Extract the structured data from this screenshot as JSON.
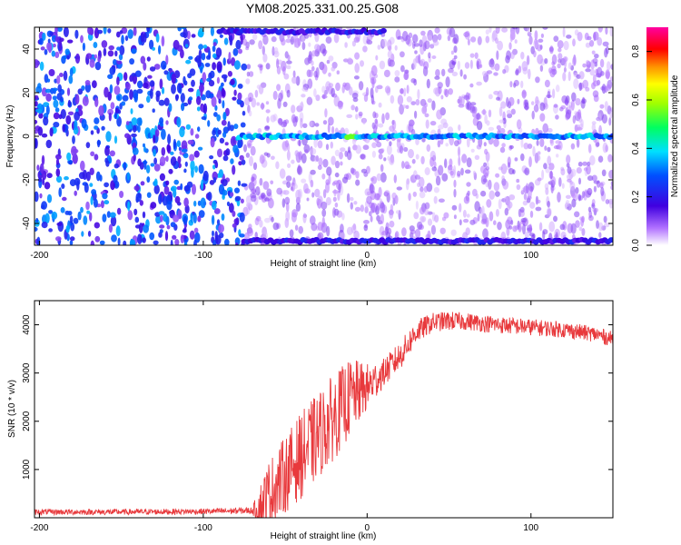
{
  "title": "YM08.2025.331.00.25.G08",
  "chart_data": [
    {
      "type": "heatmap",
      "xlabel": "Height of straight line (km)",
      "ylabel": "Frequency (Hz)",
      "xlim": [
        -203,
        150
      ],
      "ylim": [
        -50,
        50
      ],
      "xticks": [
        -200,
        -100,
        0,
        100
      ],
      "xtick_labels": [
        "-200",
        "-100",
        "0",
        "100"
      ],
      "yticks": [
        -40,
        -20,
        0,
        20,
        40
      ],
      "ytick_labels": [
        "-40",
        "-20",
        "0",
        "20",
        "40"
      ],
      "colorbar": {
        "label": "Normalized spectral amplitude",
        "range": [
          0,
          0.9
        ],
        "ticks": [
          0,
          0.2,
          0.4,
          0.6,
          0.8
        ],
        "tick_labels": [
          "0.0",
          "0.2",
          "0.4",
          "0.6",
          "0.8"
        ],
        "colormap": "rainbow (white-violet-blue-cyan-green-yellow-red-magenta)"
      },
      "noise_region": {
        "x": [
          -203,
          -75
        ],
        "amplitude": 0.3
      },
      "weak_region": {
        "x": [
          -75,
          150
        ],
        "amplitude": 0.1
      },
      "carrier_line": {
        "freq": 0,
        "x_start": -78,
        "x_end": 150,
        "amplitude": 0.35,
        "peak": {
          "x": -10,
          "amplitude": 0.55
        }
      },
      "alias_lines": [
        {
          "freq": 48,
          "x_start": -90,
          "x_end": 10,
          "amplitude": 0.2
        },
        {
          "freq": -48,
          "x_start": -75,
          "x_end": 150,
          "amplitude": 0.2
        }
      ]
    },
    {
      "type": "line",
      "xlabel": "Height of straight line (km)",
      "ylabel": "SNR (10 * v/v)",
      "xlim": [
        -203,
        150
      ],
      "ylim": [
        0,
        4500
      ],
      "xticks": [
        -200,
        -100,
        0,
        100
      ],
      "xtick_labels": [
        "-200",
        "-100",
        "0",
        "100"
      ],
      "yticks": [
        1000,
        2000,
        3000,
        4000
      ],
      "ytick_labels": [
        "1000",
        "2000",
        "3000",
        "4000"
      ],
      "color": "#e8393c",
      "series": [
        {
          "x": [
            -203,
            -150,
            -100,
            -70,
            -65,
            -60,
            -50,
            -40,
            -30,
            -20,
            -10,
            0,
            10,
            20,
            30,
            40,
            50,
            60,
            80,
            100,
            120,
            140,
            150
          ],
          "y": [
            120,
            120,
            130,
            150,
            250,
            500,
            900,
            1300,
            1700,
            2100,
            2500,
            2700,
            3000,
            3350,
            3850,
            4050,
            4080,
            4070,
            4000,
            3950,
            3900,
            3800,
            3700
          ],
          "noise": [
            60,
            60,
            60,
            70,
            500,
            700,
            800,
            900,
            900,
            900,
            800,
            500,
            300,
            300,
            250,
            200,
            200,
            180,
            180,
            170,
            170,
            160,
            160
          ]
        }
      ]
    }
  ]
}
